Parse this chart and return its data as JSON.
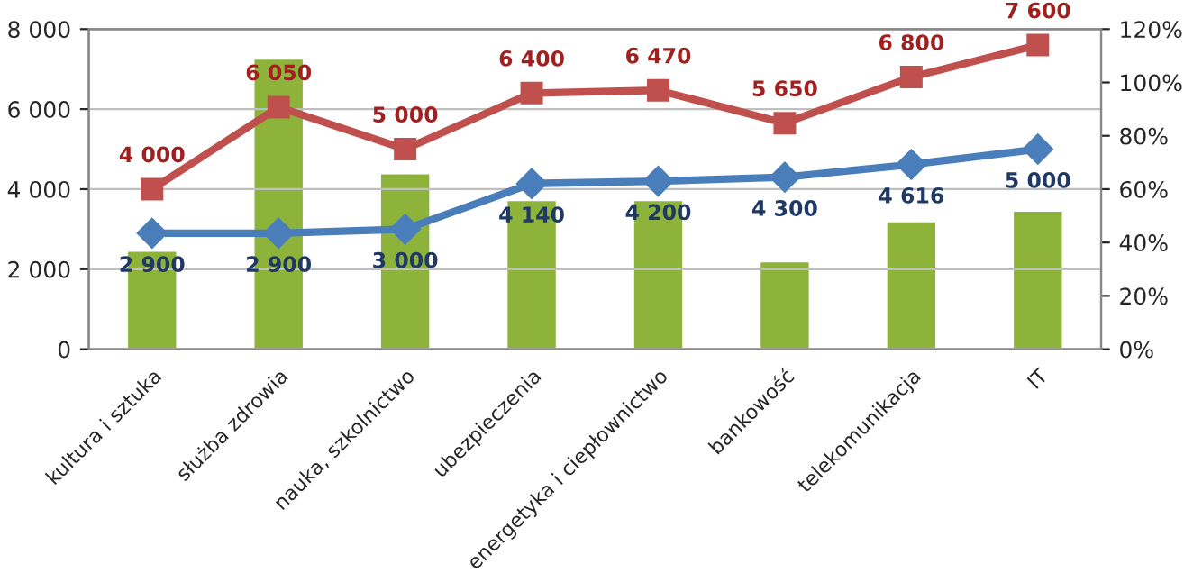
{
  "chart_data": {
    "type": "bar",
    "categories": [
      "kultura i sztuka",
      "służba zdrowia",
      "nauka, szkolnictwo",
      "ubezpieczenia",
      "energetyka i ciepłownictwo",
      "bankowość",
      "telekomunikacja",
      "IT"
    ],
    "series": [
      {
        "axis": "y2",
        "color": "#8db33a",
        "values": [
          37,
          109,
          66,
          56,
          56,
          33,
          48,
          52
        ]
      },
      {
        "type": "line",
        "axis": "y",
        "color": "#c0504d",
        "marker": "square",
        "line_style": "solid",
        "values": [
          4000,
          6050,
          5000,
          6400,
          6470,
          5650,
          6800,
          7600
        ],
        "value_labels": [
          "4 000",
          "6 050",
          "5 000",
          "6 400",
          "6 470",
          "5 650",
          "6 800",
          "7 600"
        ]
      },
      {
        "type": "line",
        "axis": "y",
        "color": "#4a7ebb",
        "marker": "diamond",
        "line_style": "solid",
        "values": [
          2900,
          2900,
          3000,
          4140,
          4200,
          4300,
          4616,
          5000
        ],
        "value_labels": [
          "2 900",
          "2 900",
          "3 000",
          "4 140",
          "4 200",
          "4 300",
          "4 616",
          "5 000"
        ]
      }
    ],
    "ylim": [
      0,
      8000
    ],
    "yticks": [
      0,
      {
        "value": 2000,
        "label": "2 000"
      },
      {
        "value": 4000,
        "label": "4 000"
      },
      {
        "value": 6000,
        "label": "6 000"
      },
      {
        "value": 8000,
        "label": "8 000"
      }
    ],
    "y2lim": [
      0,
      120
    ],
    "y2ticks": [
      {
        "value": 0,
        "label": "0%"
      },
      {
        "value": 20,
        "label": "20%"
      },
      {
        "value": 40,
        "label": "40%"
      },
      {
        "value": 60,
        "label": "60%"
      },
      {
        "value": 80,
        "label": "80%"
      },
      {
        "value": 100,
        "label": "100%"
      },
      {
        "value": 120,
        "label": "120%"
      }
    ],
    "grid": "y"
  }
}
